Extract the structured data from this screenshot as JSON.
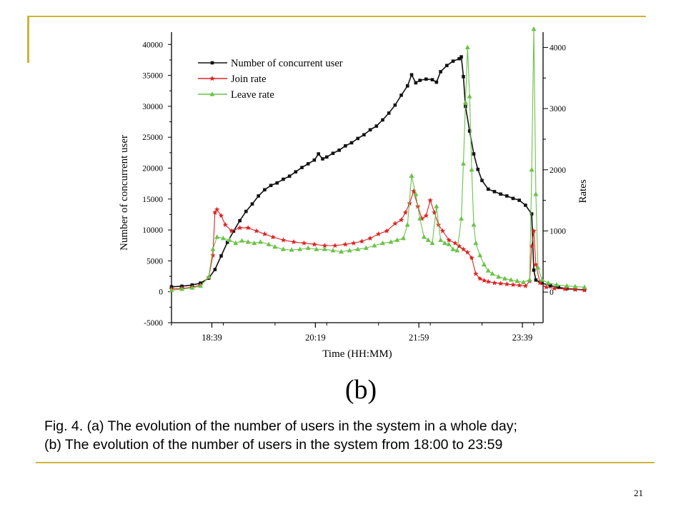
{
  "slide": {
    "sub_label": "(b)",
    "caption_line1": "Fig. 4. (a) The evolution of the number of users in the system in a whole day;",
    "caption_line2": "(b) The evolution of the number of users in the system from 18:00 to 23:59",
    "page_number": "21",
    "frame_color": "#cdb33a"
  },
  "chart_data": {
    "type": "line",
    "xlabel": "Time (HH:MM)",
    "ylabel": "Number of concurrent user",
    "ylabel_right": "Rates",
    "x_ticks": [
      "18:39",
      "20:19",
      "21:59",
      "23:39"
    ],
    "x_range": [
      "18:00",
      "23:59"
    ],
    "y_left": {
      "ticks": [
        -5000,
        0,
        5000,
        10000,
        15000,
        20000,
        25000,
        30000,
        35000,
        40000
      ],
      "range": [
        -5000,
        42000
      ]
    },
    "y_right": {
      "ticks": [
        0,
        1000,
        2000,
        3000,
        4000
      ],
      "range": [
        -500,
        4250
      ]
    },
    "legend_position": "top-left",
    "grid": false,
    "series": [
      {
        "name": "Number of concurrent user",
        "axis": "left",
        "color": "#111111",
        "marker": "square",
        "points": [
          [
            0,
            800
          ],
          [
            10,
            900
          ],
          [
            20,
            1100
          ],
          [
            28,
            1400
          ],
          [
            36,
            2200
          ],
          [
            42,
            3600
          ],
          [
            48,
            5800
          ],
          [
            54,
            8000
          ],
          [
            60,
            9800
          ],
          [
            66,
            11500
          ],
          [
            72,
            13000
          ],
          [
            78,
            14200
          ],
          [
            84,
            15500
          ],
          [
            90,
            16500
          ],
          [
            96,
            17200
          ],
          [
            102,
            17600
          ],
          [
            108,
            18200
          ],
          [
            114,
            18700
          ],
          [
            120,
            19400
          ],
          [
            126,
            20100
          ],
          [
            132,
            20700
          ],
          [
            138,
            21300
          ],
          [
            142,
            22300
          ],
          [
            146,
            21500
          ],
          [
            150,
            21800
          ],
          [
            156,
            22400
          ],
          [
            162,
            22900
          ],
          [
            168,
            23600
          ],
          [
            174,
            24100
          ],
          [
            180,
            24800
          ],
          [
            186,
            25400
          ],
          [
            192,
            26200
          ],
          [
            198,
            26800
          ],
          [
            204,
            27800
          ],
          [
            210,
            28900
          ],
          [
            216,
            30200
          ],
          [
            222,
            31800
          ],
          [
            228,
            33300
          ],
          [
            232,
            35100
          ],
          [
            236,
            33800
          ],
          [
            240,
            34200
          ],
          [
            246,
            34400
          ],
          [
            252,
            34300
          ],
          [
            256,
            33900
          ],
          [
            260,
            35600
          ],
          [
            266,
            36600
          ],
          [
            272,
            37300
          ],
          [
            278,
            37700
          ],
          [
            280,
            38000
          ],
          [
            282,
            34800
          ],
          [
            284,
            30000
          ],
          [
            288,
            26000
          ],
          [
            292,
            22300
          ],
          [
            296,
            19800
          ],
          [
            300,
            18000
          ],
          [
            306,
            16600
          ],
          [
            312,
            16200
          ],
          [
            318,
            15800
          ],
          [
            324,
            15500
          ],
          [
            330,
            15100
          ],
          [
            336,
            14800
          ],
          [
            342,
            14000
          ],
          [
            348,
            12600
          ],
          [
            350,
            3500
          ],
          [
            352,
            1900
          ],
          [
            358,
            1400
          ],
          [
            366,
            1000
          ],
          [
            374,
            700
          ],
          [
            382,
            500
          ],
          [
            390,
            400
          ],
          [
            399,
            300
          ]
        ]
      },
      {
        "name": "Join rate",
        "axis": "right",
        "color": "#dd2222",
        "marker": "star",
        "points": [
          [
            0,
            50
          ],
          [
            10,
            60
          ],
          [
            20,
            80
          ],
          [
            28,
            110
          ],
          [
            36,
            240
          ],
          [
            40,
            600
          ],
          [
            42,
            1300
          ],
          [
            44,
            1350
          ],
          [
            48,
            1250
          ],
          [
            52,
            1100
          ],
          [
            58,
            1000
          ],
          [
            66,
            1050
          ],
          [
            74,
            1050
          ],
          [
            82,
            1000
          ],
          [
            90,
            950
          ],
          [
            98,
            900
          ],
          [
            108,
            850
          ],
          [
            118,
            820
          ],
          [
            128,
            800
          ],
          [
            138,
            780
          ],
          [
            148,
            760
          ],
          [
            158,
            760
          ],
          [
            168,
            780
          ],
          [
            176,
            800
          ],
          [
            184,
            830
          ],
          [
            192,
            880
          ],
          [
            200,
            950
          ],
          [
            208,
            1000
          ],
          [
            216,
            1120
          ],
          [
            222,
            1180
          ],
          [
            226,
            1300
          ],
          [
            230,
            1450
          ],
          [
            234,
            1650
          ],
          [
            238,
            1400
          ],
          [
            242,
            1200
          ],
          [
            246,
            1250
          ],
          [
            250,
            1500
          ],
          [
            254,
            1300
          ],
          [
            258,
            1100
          ],
          [
            262,
            1000
          ],
          [
            268,
            850
          ],
          [
            274,
            800
          ],
          [
            278,
            750
          ],
          [
            282,
            700
          ],
          [
            286,
            650
          ],
          [
            290,
            560
          ],
          [
            294,
            300
          ],
          [
            298,
            220
          ],
          [
            302,
            190
          ],
          [
            306,
            170
          ],
          [
            312,
            150
          ],
          [
            318,
            140
          ],
          [
            324,
            130
          ],
          [
            330,
            120
          ],
          [
            336,
            110
          ],
          [
            342,
            100
          ],
          [
            346,
            180
          ],
          [
            348,
            750
          ],
          [
            350,
            1000
          ],
          [
            352,
            450
          ],
          [
            356,
            150
          ],
          [
            362,
            80
          ],
          [
            370,
            60
          ],
          [
            380,
            50
          ],
          [
            390,
            40
          ],
          [
            399,
            30
          ]
        ]
      },
      {
        "name": "Leave rate",
        "axis": "right",
        "color": "#6cc24a",
        "marker": "triangle",
        "points": [
          [
            0,
            30
          ],
          [
            10,
            50
          ],
          [
            20,
            70
          ],
          [
            28,
            100
          ],
          [
            36,
            250
          ],
          [
            40,
            700
          ],
          [
            44,
            900
          ],
          [
            50,
            880
          ],
          [
            56,
            850
          ],
          [
            62,
            800
          ],
          [
            68,
            840
          ],
          [
            74,
            820
          ],
          [
            80,
            800
          ],
          [
            86,
            820
          ],
          [
            94,
            780
          ],
          [
            100,
            740
          ],
          [
            108,
            700
          ],
          [
            116,
            690
          ],
          [
            124,
            700
          ],
          [
            132,
            720
          ],
          [
            140,
            700
          ],
          [
            148,
            700
          ],
          [
            156,
            680
          ],
          [
            164,
            660
          ],
          [
            172,
            680
          ],
          [
            180,
            700
          ],
          [
            188,
            720
          ],
          [
            196,
            760
          ],
          [
            204,
            800
          ],
          [
            212,
            820
          ],
          [
            218,
            850
          ],
          [
            224,
            880
          ],
          [
            228,
            1100
          ],
          [
            232,
            1900
          ],
          [
            236,
            1600
          ],
          [
            240,
            1200
          ],
          [
            244,
            900
          ],
          [
            248,
            850
          ],
          [
            252,
            800
          ],
          [
            256,
            1400
          ],
          [
            260,
            850
          ],
          [
            264,
            800
          ],
          [
            268,
            780
          ],
          [
            272,
            700
          ],
          [
            276,
            680
          ],
          [
            280,
            1200
          ],
          [
            282,
            2100
          ],
          [
            284,
            3100
          ],
          [
            286,
            4000
          ],
          [
            288,
            3200
          ],
          [
            290,
            2000
          ],
          [
            292,
            1100
          ],
          [
            294,
            800
          ],
          [
            298,
            600
          ],
          [
            302,
            450
          ],
          [
            306,
            350
          ],
          [
            310,
            300
          ],
          [
            316,
            250
          ],
          [
            322,
            220
          ],
          [
            328,
            200
          ],
          [
            334,
            180
          ],
          [
            340,
            160
          ],
          [
            346,
            200
          ],
          [
            348,
            2000
          ],
          [
            350,
            4300
          ],
          [
            352,
            1600
          ],
          [
            354,
            400
          ],
          [
            358,
            200
          ],
          [
            364,
            150
          ],
          [
            372,
            120
          ],
          [
            382,
            100
          ],
          [
            390,
            90
          ],
          [
            399,
            80
          ]
        ]
      }
    ]
  }
}
